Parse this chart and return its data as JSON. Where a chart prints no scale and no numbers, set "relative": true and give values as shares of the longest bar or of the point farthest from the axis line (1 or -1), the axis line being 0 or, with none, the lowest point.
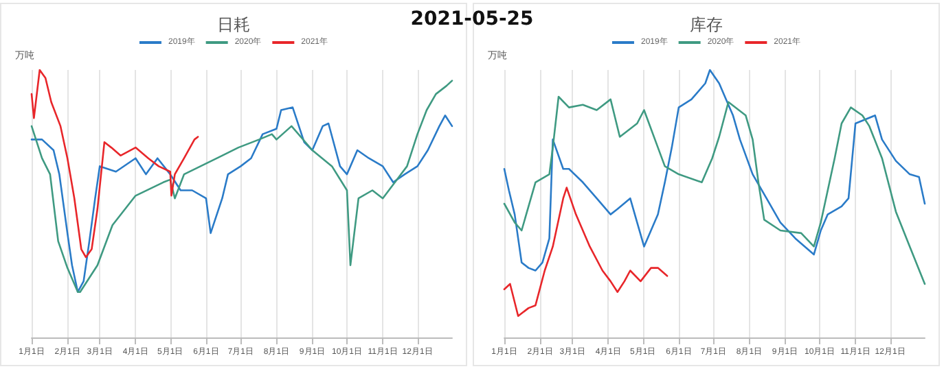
{
  "chart_data": [
    {
      "type": "line",
      "title": "日耗",
      "ylabel": "万吨",
      "relative": true,
      "legend": "top",
      "grid": "x",
      "annotations": [
        "2021-05-25"
      ],
      "xlim": [
        "--01-01",
        "--12-31"
      ],
      "xticks": [
        {
          "value": "--01-01",
          "label": "1月1日"
        },
        {
          "value": "--02-01",
          "label": "2月1日"
        },
        {
          "value": "--03-01",
          "label": "3月1日"
        },
        {
          "value": "--04-01",
          "label": "4月1日"
        },
        {
          "value": "--05-01",
          "label": "5月1日"
        },
        {
          "value": "--06-01",
          "label": "6月1日"
        },
        {
          "value": "--07-01",
          "label": "7月1日"
        },
        {
          "value": "--08-01",
          "label": "8月1日"
        },
        {
          "value": "--09-01",
          "label": "9月1日"
        },
        {
          "value": "--10-01",
          "label": "10月1日"
        },
        {
          "value": "--11-01",
          "label": "11月1日"
        },
        {
          "value": "--12-01",
          "label": "12月1日"
        }
      ],
      "series": [
        {
          "name": "2019年",
          "color": "#2a7bc8",
          "x": [
            "--01-01",
            "--01-10",
            "--01-20",
            "--01-25",
            "--02-01",
            "--02-05",
            "--02-10",
            "--02-15",
            "--02-20",
            "--02-25",
            "--03-01",
            "--03-15",
            "--04-01",
            "--04-10",
            "--04-20",
            "--05-01",
            "--05-10",
            "--05-20",
            "--06-01",
            "--06-05",
            "--06-15",
            "--06-20",
            "--07-01",
            "--07-10",
            "--07-20",
            "--08-01",
            "--08-05",
            "--08-15",
            "--08-25",
            "--09-01",
            "--09-10",
            "--09-15",
            "--09-25",
            "--10-01",
            "--10-10",
            "--10-20",
            "--11-01",
            "--11-10",
            "--11-20",
            "--12-01",
            "--12-10",
            "--12-20",
            "--12-25",
            "--12-31"
          ],
          "values": [
            0.74,
            0.74,
            0.7,
            0.61,
            0.39,
            0.27,
            0.17,
            0.21,
            0.36,
            0.52,
            0.64,
            0.62,
            0.67,
            0.61,
            0.67,
            0.61,
            0.55,
            0.55,
            0.52,
            0.39,
            0.52,
            0.61,
            0.64,
            0.67,
            0.76,
            0.78,
            0.85,
            0.86,
            0.73,
            0.7,
            0.79,
            0.8,
            0.64,
            0.61,
            0.7,
            0.67,
            0.64,
            0.58,
            0.61,
            0.64,
            0.7,
            0.79,
            0.83,
            0.79
          ]
        },
        {
          "name": "2020年",
          "color": "#3f9a82",
          "x": [
            "--01-01",
            "--01-10",
            "--01-17",
            "--01-24",
            "--02-01",
            "--02-10",
            "--02-12",
            "--02-27",
            "--03-12",
            "--04-01",
            "--04-25",
            "--05-01",
            "--05-05",
            "--05-13",
            "--06-15",
            "--06-29",
            "--07-17",
            "--07-28",
            "--08-01",
            "--08-14",
            "--09-01",
            "--09-18",
            "--10-01",
            "--10-04",
            "--10-11",
            "--10-23",
            "--11-01",
            "--11-22",
            "--12-01",
            "--12-09",
            "--12-17",
            "--12-26",
            "--12-31"
          ],
          "values": [
            0.79,
            0.67,
            0.61,
            0.36,
            0.26,
            0.17,
            0.17,
            0.27,
            0.42,
            0.53,
            0.58,
            0.59,
            0.52,
            0.61,
            0.68,
            0.71,
            0.74,
            0.76,
            0.74,
            0.79,
            0.7,
            0.64,
            0.55,
            0.27,
            0.52,
            0.55,
            0.52,
            0.64,
            0.76,
            0.85,
            0.91,
            0.94,
            0.96
          ]
        },
        {
          "name": "2021年",
          "color": "#e8262a",
          "x": [
            "--01-01",
            "--01-03",
            "--01-08",
            "--01-13",
            "--01-18",
            "--01-26",
            "--02-01",
            "--02-07",
            "--02-13",
            "--02-17",
            "--02-22",
            "--02-27",
            "--03-05",
            "--03-11",
            "--03-19",
            "--04-01",
            "--04-12",
            "--04-21",
            "--05-01",
            "--05-02",
            "--05-05",
            "--05-13",
            "--05-22",
            "--05-25"
          ],
          "values": [
            0.91,
            0.82,
            1.0,
            0.97,
            0.88,
            0.79,
            0.67,
            0.52,
            0.33,
            0.3,
            0.33,
            0.48,
            0.73,
            0.71,
            0.68,
            0.71,
            0.67,
            0.64,
            0.62,
            0.53,
            0.61,
            0.67,
            0.74,
            0.75
          ]
        }
      ]
    },
    {
      "type": "line",
      "title": "库存",
      "ylabel": "万吨",
      "relative": true,
      "legend": "top",
      "grid": "x",
      "xlim": [
        "--01-01",
        "--12-31"
      ],
      "xticks": [
        {
          "value": "--01-01",
          "label": "1月1日"
        },
        {
          "value": "--02-01",
          "label": "2月1日"
        },
        {
          "value": "--03-01",
          "label": "3月1日"
        },
        {
          "value": "--04-01",
          "label": "4月1日"
        },
        {
          "value": "--05-01",
          "label": "5月1日"
        },
        {
          "value": "--06-01",
          "label": "6月1日"
        },
        {
          "value": "--07-01",
          "label": "7月1日"
        },
        {
          "value": "--08-01",
          "label": "8月1日"
        },
        {
          "value": "--09-01",
          "label": "9月1日"
        },
        {
          "value": "--10-01",
          "label": "10月1日"
        },
        {
          "value": "--11-01",
          "label": "11月1日"
        },
        {
          "value": "--12-01",
          "label": "12月1日"
        }
      ],
      "series": [
        {
          "name": "2019年",
          "color": "#2a7bc8",
          "x": [
            "--01-01",
            "--01-05",
            "--01-10",
            "--01-14",
            "--01-16",
            "--01-22",
            "--01-28",
            "--02-03",
            "--02-09",
            "--02-12",
            "--02-21",
            "--02-26",
            "--03-10",
            "--03-22",
            "--04-03",
            "--04-09",
            "--04-20",
            "--04-26",
            "--05-02",
            "--05-14",
            "--05-20",
            "--05-26",
            "--06-01",
            "--06-12",
            "--06-24",
            "--06-28",
            "--07-06",
            "--07-12",
            "--07-18",
            "--07-24",
            "--08-04",
            "--08-16",
            "--08-28",
            "--09-10",
            "--09-26",
            "--10-02",
            "--10-08",
            "--10-20",
            "--10-26",
            "--11-01",
            "--11-18",
            "--11-24",
            "--12-06",
            "--12-18",
            "--12-26",
            "--12-31"
          ],
          "values": [
            0.63,
            0.55,
            0.46,
            0.34,
            0.28,
            0.26,
            0.25,
            0.28,
            0.37,
            0.74,
            0.63,
            0.63,
            0.58,
            0.52,
            0.46,
            0.48,
            0.52,
            0.43,
            0.34,
            0.46,
            0.58,
            0.71,
            0.86,
            0.89,
            0.95,
            1.0,
            0.95,
            0.89,
            0.83,
            0.74,
            0.61,
            0.52,
            0.43,
            0.37,
            0.31,
            0.4,
            0.46,
            0.49,
            0.52,
            0.8,
            0.83,
            0.74,
            0.66,
            0.61,
            0.6,
            0.5
          ]
        },
        {
          "name": "2020年",
          "color": "#3f9a82",
          "x": [
            "--01-01",
            "--01-10",
            "--01-16",
            "--01-22",
            "--01-28",
            "--02-09",
            "--02-12",
            "--02-17",
            "--02-26",
            "--03-10",
            "--03-22",
            "--04-03",
            "--04-11",
            "--04-26",
            "--05-02",
            "--05-14",
            "--05-20",
            "--06-01",
            "--06-21",
            "--06-30",
            "--07-06",
            "--07-14",
            "--07-29",
            "--08-04",
            "--08-09",
            "--08-14",
            "--08-28",
            "--09-15",
            "--09-26",
            "--10-02",
            "--10-08",
            "--10-14",
            "--10-20",
            "--10-28",
            "--11-07",
            "--11-13",
            "--11-24",
            "--12-06",
            "--12-18",
            "--12-31"
          ],
          "values": [
            0.5,
            0.43,
            0.4,
            0.49,
            0.58,
            0.61,
            0.71,
            0.9,
            0.86,
            0.87,
            0.85,
            0.89,
            0.75,
            0.8,
            0.85,
            0.71,
            0.64,
            0.61,
            0.58,
            0.67,
            0.75,
            0.88,
            0.83,
            0.74,
            0.58,
            0.44,
            0.4,
            0.39,
            0.34,
            0.43,
            0.55,
            0.67,
            0.8,
            0.86,
            0.83,
            0.79,
            0.67,
            0.47,
            0.34,
            0.2
          ]
        },
        {
          "name": "2021年",
          "color": "#e8262a",
          "x": [
            "--01-01",
            "--01-06",
            "--01-13",
            "--01-22",
            "--01-28",
            "--02-05",
            "--02-12",
            "--02-21",
            "--02-24",
            "--03-04",
            "--03-16",
            "--03-27",
            "--04-03",
            "--04-09",
            "--04-15",
            "--04-20",
            "--04-29",
            "--05-08",
            "--05-14",
            "--05-22"
          ],
          "values": [
            0.18,
            0.2,
            0.08,
            0.11,
            0.12,
            0.25,
            0.34,
            0.52,
            0.56,
            0.46,
            0.34,
            0.25,
            0.21,
            0.17,
            0.21,
            0.25,
            0.21,
            0.26,
            0.26,
            0.23
          ]
        }
      ]
    }
  ]
}
